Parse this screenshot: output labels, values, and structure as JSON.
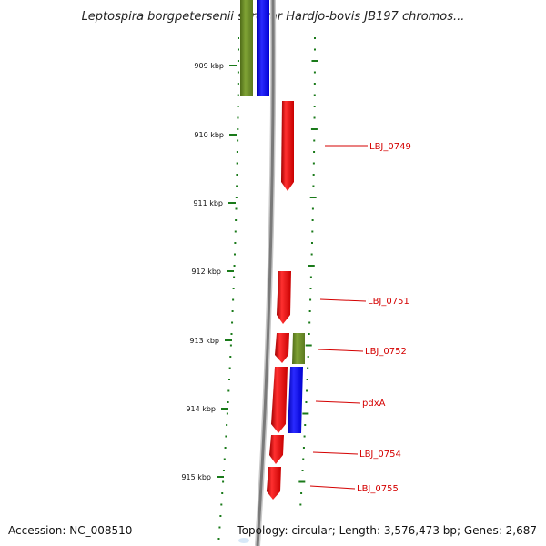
{
  "title": "Leptospira borgpetersenii serovar Hardjo-bovis JB197 chromos...",
  "ticks": [
    {
      "label": "909 kbp"
    },
    {
      "label": "910 kbp"
    },
    {
      "label": "911 kbp"
    },
    {
      "label": "912 kbp"
    },
    {
      "label": "913 kbp"
    },
    {
      "label": "914 kbp"
    },
    {
      "label": "915 kbp"
    }
  ],
  "genes": [
    {
      "label": "LBJ_0749",
      "color": "#ff0000"
    },
    {
      "label": "LBJ_0751",
      "color": "#ff0000"
    },
    {
      "label": "LBJ_0752",
      "color": "#ff0000"
    },
    {
      "label": "pdxA",
      "color": "#ff0000"
    },
    {
      "label": "LBJ_0754",
      "color": "#ff0000"
    },
    {
      "label": "LBJ_0755",
      "color": "#ff0000"
    }
  ],
  "colors": {
    "cds_red": "#ff0000",
    "cds_green": "#6b8e23",
    "cds_blue": "#0000ff",
    "backbone": "#808080",
    "ruler": "#1a7a1a",
    "label": "#d40000"
  },
  "footer": {
    "accession": "Accession: NC_008510",
    "summary": "Topology: circular; Length: 3,576,473 bp; Genes: 2,687"
  }
}
